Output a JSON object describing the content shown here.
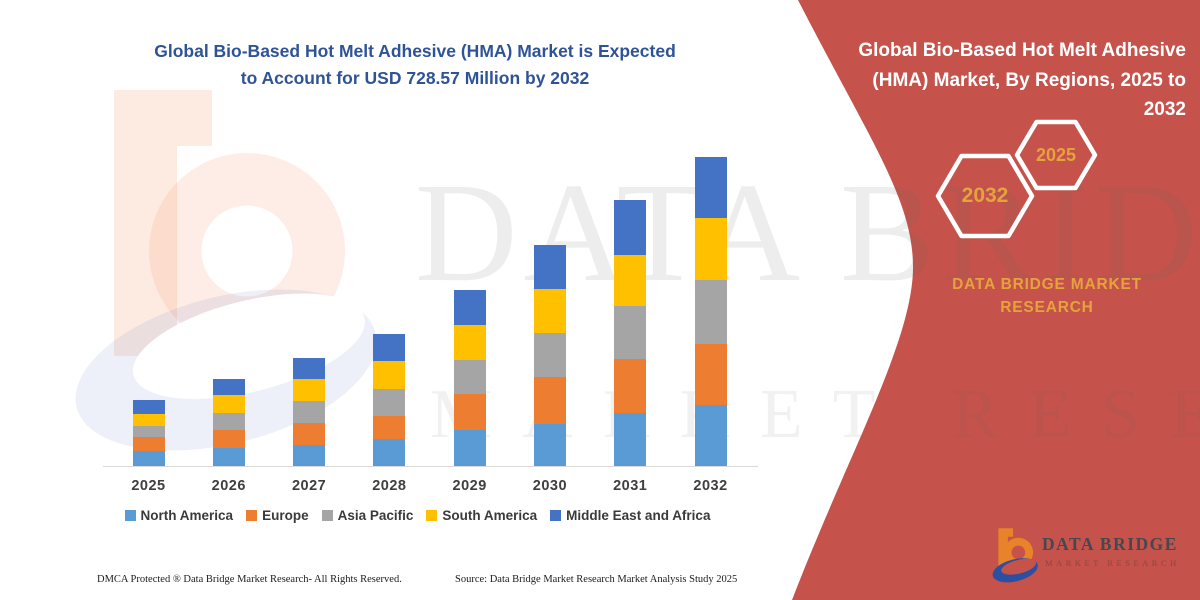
{
  "colors": {
    "accent_red": "#C5524B",
    "title_blue": "#2F5496",
    "gold": "#E5A33C",
    "axis_line": "#D9D9D9",
    "label_gray": "#3f3f3f"
  },
  "left_chart": {
    "title_line1": "Global Bio-Based Hot Melt Adhesive (HMA) Market is Expected",
    "title_line2": "to Account for USD 728.57 Million by 2032",
    "footer_left": "DMCA Protected ® Data Bridge Market Research-  All Rights Reserved.",
    "footer_right": "Source: Data Bridge Market Research  Market Analysis Study 2025"
  },
  "right_panel": {
    "title_lines": [
      "Global Bio-Based Hot Melt Adhesive",
      "(HMA) Market, By Regions, 2025 to",
      "2032"
    ],
    "hexagon_back_label": "2032",
    "hexagon_front_label": "2025",
    "brand_line1": "DATA BRIDGE MARKET",
    "brand_line2": "RESEARCH",
    "logo_name": "DATA BRIDGE",
    "logo_sub": "MARKET RESEARCH"
  },
  "watermark": {
    "text1": "DATA BRIDGE",
    "text2": "MARKET RESEARCH"
  },
  "chart_data": {
    "type": "bar",
    "stacked": true,
    "title": "Global Bio-Based Hot Melt Adhesive (HMA) Market is Expected to Account for USD 728.57 Million by 2032",
    "unit": "USD Million",
    "xlabel": "",
    "ylabel": "",
    "grid": false,
    "legend_position": "bottom",
    "ylim": [
      0,
      760
    ],
    "categories": [
      "2025",
      "2026",
      "2027",
      "2028",
      "2029",
      "2030",
      "2031",
      "2032"
    ],
    "series": [
      {
        "name": "North America",
        "color": "#5B9BD5",
        "values": [
          38,
          45,
          51,
          65,
          86,
          102,
          127,
          145.0
        ]
      },
      {
        "name": "Europe",
        "color": "#ED7D31",
        "values": [
          32,
          42,
          52,
          54,
          85,
          110,
          126,
          145.0
        ]
      },
      {
        "name": "Asia Pacific",
        "color": "#A5A5A5",
        "values": [
          27,
          39,
          53,
          65,
          81,
          104,
          125,
          148.9
        ]
      },
      {
        "name": "South America",
        "color": "#FFC000",
        "values": [
          28,
          43,
          52,
          65,
          81,
          102,
          121,
          147.0
        ]
      },
      {
        "name": "Middle East and Africa",
        "color": "#4472C4",
        "values": [
          33,
          38,
          49,
          63,
          82,
          103,
          128,
          142.67
        ]
      }
    ],
    "totals": [
      158,
      207,
      257,
      312,
      415,
      521,
      627,
      728.57
    ],
    "annotations": [
      "Total market expected to reach USD 728.57 Million by 2032"
    ]
  }
}
